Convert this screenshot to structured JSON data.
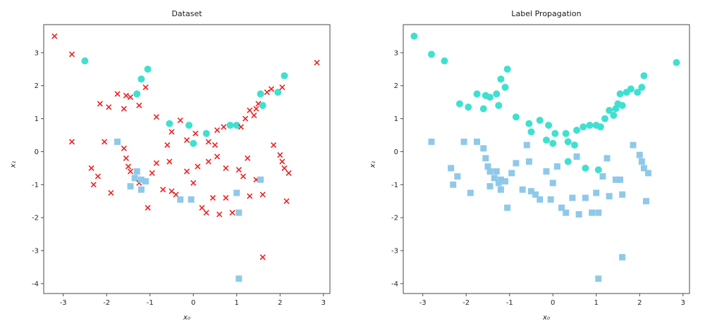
{
  "figure": {
    "background": "#ffffff"
  },
  "charts": [
    {
      "title": "Dataset",
      "xlabel": "x₀",
      "ylabel": "x₁",
      "marker_field": "observed_label"
    },
    {
      "title": "Label Propagation",
      "xlabel": "x₀",
      "ylabel": "x₁",
      "marker_field": "propagated_label"
    }
  ],
  "chart_data": {
    "type": "scatter",
    "xlim": [
      -3.45,
      3.15
    ],
    "ylim": [
      -4.3,
      3.85
    ],
    "xticks": [
      -3,
      -2,
      -1,
      0,
      1,
      2,
      3
    ],
    "yticks": [
      -4,
      -3,
      -2,
      -1,
      0,
      1,
      2,
      3
    ],
    "grid": false,
    "legend": "none",
    "markers": {
      "circle": {
        "shape": "circle",
        "color": "#40e0d0"
      },
      "square": {
        "shape": "square",
        "color": "#8fc9e9"
      },
      "unlabeled": {
        "shape": "x",
        "color": "#ee2020"
      }
    },
    "points_format": [
      "x",
      "y",
      "observed_label",
      "propagated_label"
    ],
    "points": [
      [
        -3.2,
        3.5,
        "unlabeled",
        "circle"
      ],
      [
        -2.8,
        2.95,
        "unlabeled",
        "circle"
      ],
      [
        -2.5,
        2.75,
        "circle",
        "circle"
      ],
      [
        -2.15,
        1.45,
        "unlabeled",
        "circle"
      ],
      [
        -1.95,
        1.35,
        "unlabeled",
        "circle"
      ],
      [
        -1.75,
        1.75,
        "unlabeled",
        "circle"
      ],
      [
        -1.6,
        1.3,
        "unlabeled",
        "circle"
      ],
      [
        -1.55,
        1.7,
        "unlabeled",
        "circle"
      ],
      [
        -1.45,
        1.65,
        "unlabeled",
        "circle"
      ],
      [
        -1.3,
        1.75,
        "circle",
        "circle"
      ],
      [
        -1.25,
        1.4,
        "unlabeled",
        "circle"
      ],
      [
        -1.2,
        2.2,
        "circle",
        "circle"
      ],
      [
        -1.05,
        2.5,
        "circle",
        "circle"
      ],
      [
        -1.1,
        1.95,
        "unlabeled",
        "circle"
      ],
      [
        -0.85,
        1.05,
        "unlabeled",
        "circle"
      ],
      [
        -0.55,
        0.85,
        "circle",
        "circle"
      ],
      [
        -0.5,
        0.6,
        "unlabeled",
        "circle"
      ],
      [
        -0.3,
        0.95,
        "unlabeled",
        "circle"
      ],
      [
        -0.1,
        0.8,
        "circle",
        "circle"
      ],
      [
        -0.15,
        0.35,
        "unlabeled",
        "circle"
      ],
      [
        0.0,
        0.25,
        "circle",
        "circle"
      ],
      [
        0.05,
        0.55,
        "unlabeled",
        "circle"
      ],
      [
        0.3,
        0.55,
        "circle",
        "circle"
      ],
      [
        0.35,
        0.3,
        "unlabeled",
        "circle"
      ],
      [
        0.5,
        0.2,
        "unlabeled",
        "circle"
      ],
      [
        0.55,
        0.65,
        "unlabeled",
        "circle"
      ],
      [
        0.7,
        0.75,
        "unlabeled",
        "circle"
      ],
      [
        0.85,
        0.8,
        "circle",
        "circle"
      ],
      [
        1.0,
        0.8,
        "circle",
        "circle"
      ],
      [
        1.1,
        0.75,
        "unlabeled",
        "circle"
      ],
      [
        1.2,
        1.0,
        "unlabeled",
        "circle"
      ],
      [
        1.3,
        1.25,
        "unlabeled",
        "circle"
      ],
      [
        1.4,
        1.1,
        "unlabeled",
        "circle"
      ],
      [
        1.45,
        1.3,
        "unlabeled",
        "circle"
      ],
      [
        1.5,
        1.45,
        "unlabeled",
        "circle"
      ],
      [
        1.55,
        1.75,
        "circle",
        "circle"
      ],
      [
        1.6,
        1.4,
        "circle",
        "circle"
      ],
      [
        1.7,
        1.8,
        "unlabeled",
        "circle"
      ],
      [
        1.8,
        1.9,
        "unlabeled",
        "circle"
      ],
      [
        1.95,
        1.8,
        "circle",
        "circle"
      ],
      [
        2.05,
        1.95,
        "unlabeled",
        "circle"
      ],
      [
        2.1,
        2.3,
        "circle",
        "circle"
      ],
      [
        2.85,
        2.7,
        "unlabeled",
        "circle"
      ],
      [
        0.35,
        -0.3,
        "unlabeled",
        "circle"
      ],
      [
        0.75,
        -0.5,
        "unlabeled",
        "circle"
      ],
      [
        1.05,
        -0.55,
        "unlabeled",
        "circle"
      ],
      [
        -2.8,
        0.3,
        "unlabeled",
        "square"
      ],
      [
        -2.35,
        -0.5,
        "unlabeled",
        "square"
      ],
      [
        -2.2,
        -0.75,
        "unlabeled",
        "square"
      ],
      [
        -2.3,
        -1.0,
        "unlabeled",
        "square"
      ],
      [
        -1.9,
        -1.25,
        "unlabeled",
        "square"
      ],
      [
        -2.05,
        0.3,
        "unlabeled",
        "square"
      ],
      [
        -1.75,
        0.3,
        "square",
        "square"
      ],
      [
        -1.6,
        0.1,
        "unlabeled",
        "square"
      ],
      [
        -1.55,
        -0.2,
        "unlabeled",
        "square"
      ],
      [
        -1.5,
        -0.45,
        "unlabeled",
        "square"
      ],
      [
        -1.45,
        -0.6,
        "unlabeled",
        "square"
      ],
      [
        -1.45,
        -1.05,
        "square",
        "square"
      ],
      [
        -1.35,
        -0.8,
        "square",
        "square"
      ],
      [
        -1.3,
        -0.6,
        "square",
        "square"
      ],
      [
        -1.25,
        -0.95,
        "unlabeled",
        "square"
      ],
      [
        -1.2,
        -0.85,
        "square",
        "square"
      ],
      [
        -1.2,
        -1.15,
        "square",
        "square"
      ],
      [
        -1.1,
        -0.9,
        "square",
        "square"
      ],
      [
        -1.05,
        -1.7,
        "unlabeled",
        "square"
      ],
      [
        -0.95,
        -0.65,
        "unlabeled",
        "square"
      ],
      [
        -0.85,
        -0.35,
        "unlabeled",
        "square"
      ],
      [
        -0.7,
        -1.15,
        "unlabeled",
        "square"
      ],
      [
        -0.6,
        0.2,
        "unlabeled",
        "square"
      ],
      [
        -0.55,
        -0.3,
        "unlabeled",
        "square"
      ],
      [
        -0.5,
        -1.2,
        "unlabeled",
        "square"
      ],
      [
        -0.4,
        -1.3,
        "unlabeled",
        "square"
      ],
      [
        -0.3,
        -1.45,
        "square",
        "square"
      ],
      [
        -0.05,
        -1.45,
        "square",
        "square"
      ],
      [
        -0.15,
        -0.6,
        "unlabeled",
        "square"
      ],
      [
        0.0,
        -0.95,
        "unlabeled",
        "square"
      ],
      [
        0.1,
        -0.45,
        "unlabeled",
        "square"
      ],
      [
        0.2,
        -1.7,
        "unlabeled",
        "square"
      ],
      [
        0.3,
        -1.85,
        "unlabeled",
        "square"
      ],
      [
        0.45,
        -1.4,
        "unlabeled",
        "square"
      ],
      [
        0.55,
        -0.15,
        "unlabeled",
        "square"
      ],
      [
        0.6,
        -1.9,
        "unlabeled",
        "square"
      ],
      [
        0.75,
        -1.4,
        "unlabeled",
        "square"
      ],
      [
        0.9,
        -1.85,
        "unlabeled",
        "square"
      ],
      [
        1.0,
        -1.25,
        "square",
        "square"
      ],
      [
        1.05,
        -1.85,
        "square",
        "square"
      ],
      [
        1.15,
        -0.75,
        "unlabeled",
        "square"
      ],
      [
        1.25,
        -0.2,
        "unlabeled",
        "square"
      ],
      [
        1.3,
        -1.35,
        "unlabeled",
        "square"
      ],
      [
        1.45,
        -0.85,
        "unlabeled",
        "square"
      ],
      [
        1.55,
        -0.85,
        "square",
        "square"
      ],
      [
        1.6,
        -1.3,
        "unlabeled",
        "square"
      ],
      [
        1.85,
        0.2,
        "unlabeled",
        "square"
      ],
      [
        2.0,
        -0.1,
        "unlabeled",
        "square"
      ],
      [
        2.05,
        -0.3,
        "unlabeled",
        "square"
      ],
      [
        2.1,
        -0.5,
        "unlabeled",
        "square"
      ],
      [
        2.2,
        -0.65,
        "unlabeled",
        "square"
      ],
      [
        2.15,
        -1.5,
        "unlabeled",
        "square"
      ],
      [
        1.6,
        -3.2,
        "unlabeled",
        "square"
      ],
      [
        1.05,
        -3.85,
        "square",
        "square"
      ]
    ]
  }
}
